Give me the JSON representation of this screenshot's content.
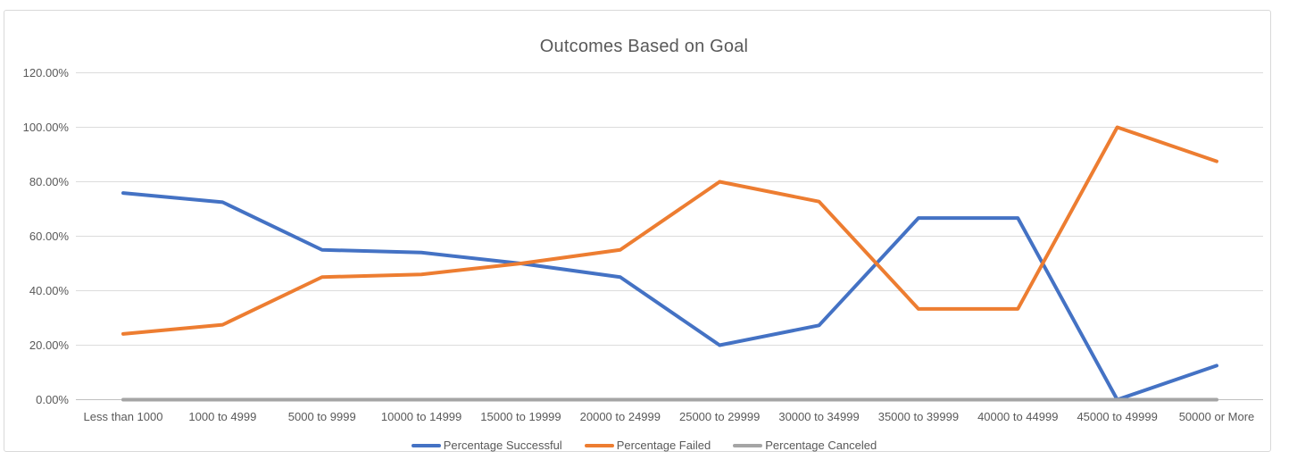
{
  "chart_data": {
    "type": "line",
    "title": "Outcomes Based on Goal",
    "categories": [
      "Less than 1000",
      "1000 to 4999",
      "5000 to 9999",
      "10000 to 14999",
      "15000 to 19999",
      "20000 to 24999",
      "25000 to 29999",
      "30000 to 34999",
      "35000 to 39999",
      "40000 to 44999",
      "45000 to 49999",
      "50000 or More"
    ],
    "series": [
      {
        "name": "Percentage Successful",
        "color": "#4472C4",
        "values": [
          75.86,
          72.5,
          55,
          54,
          50,
          45,
          20,
          27.27,
          66.67,
          66.67,
          0,
          12.5
        ]
      },
      {
        "name": "Percentage Failed",
        "color": "#ED7D31",
        "values": [
          24.14,
          27.5,
          45,
          46,
          50,
          55,
          80,
          72.73,
          33.33,
          33.33,
          100,
          87.5
        ]
      },
      {
        "name": "Percentage Canceled",
        "color": "#A5A5A5",
        "values": [
          0,
          0,
          0,
          0,
          0,
          0,
          0,
          0,
          0,
          0,
          0,
          0
        ]
      }
    ],
    "y_axis": {
      "min": 0,
      "max": 120,
      "step": 20,
      "tick_labels": [
        "0.00%",
        "20.00%",
        "40.00%",
        "60.00%",
        "80.00%",
        "100.00%",
        "120.00%"
      ]
    },
    "grid": true,
    "legend_position": "bottom",
    "colors": {
      "grid_line": "#DCDCDC",
      "axis_line": "#BFBFBF",
      "text": "#595959",
      "frame_border": "#D9D9D9"
    }
  }
}
